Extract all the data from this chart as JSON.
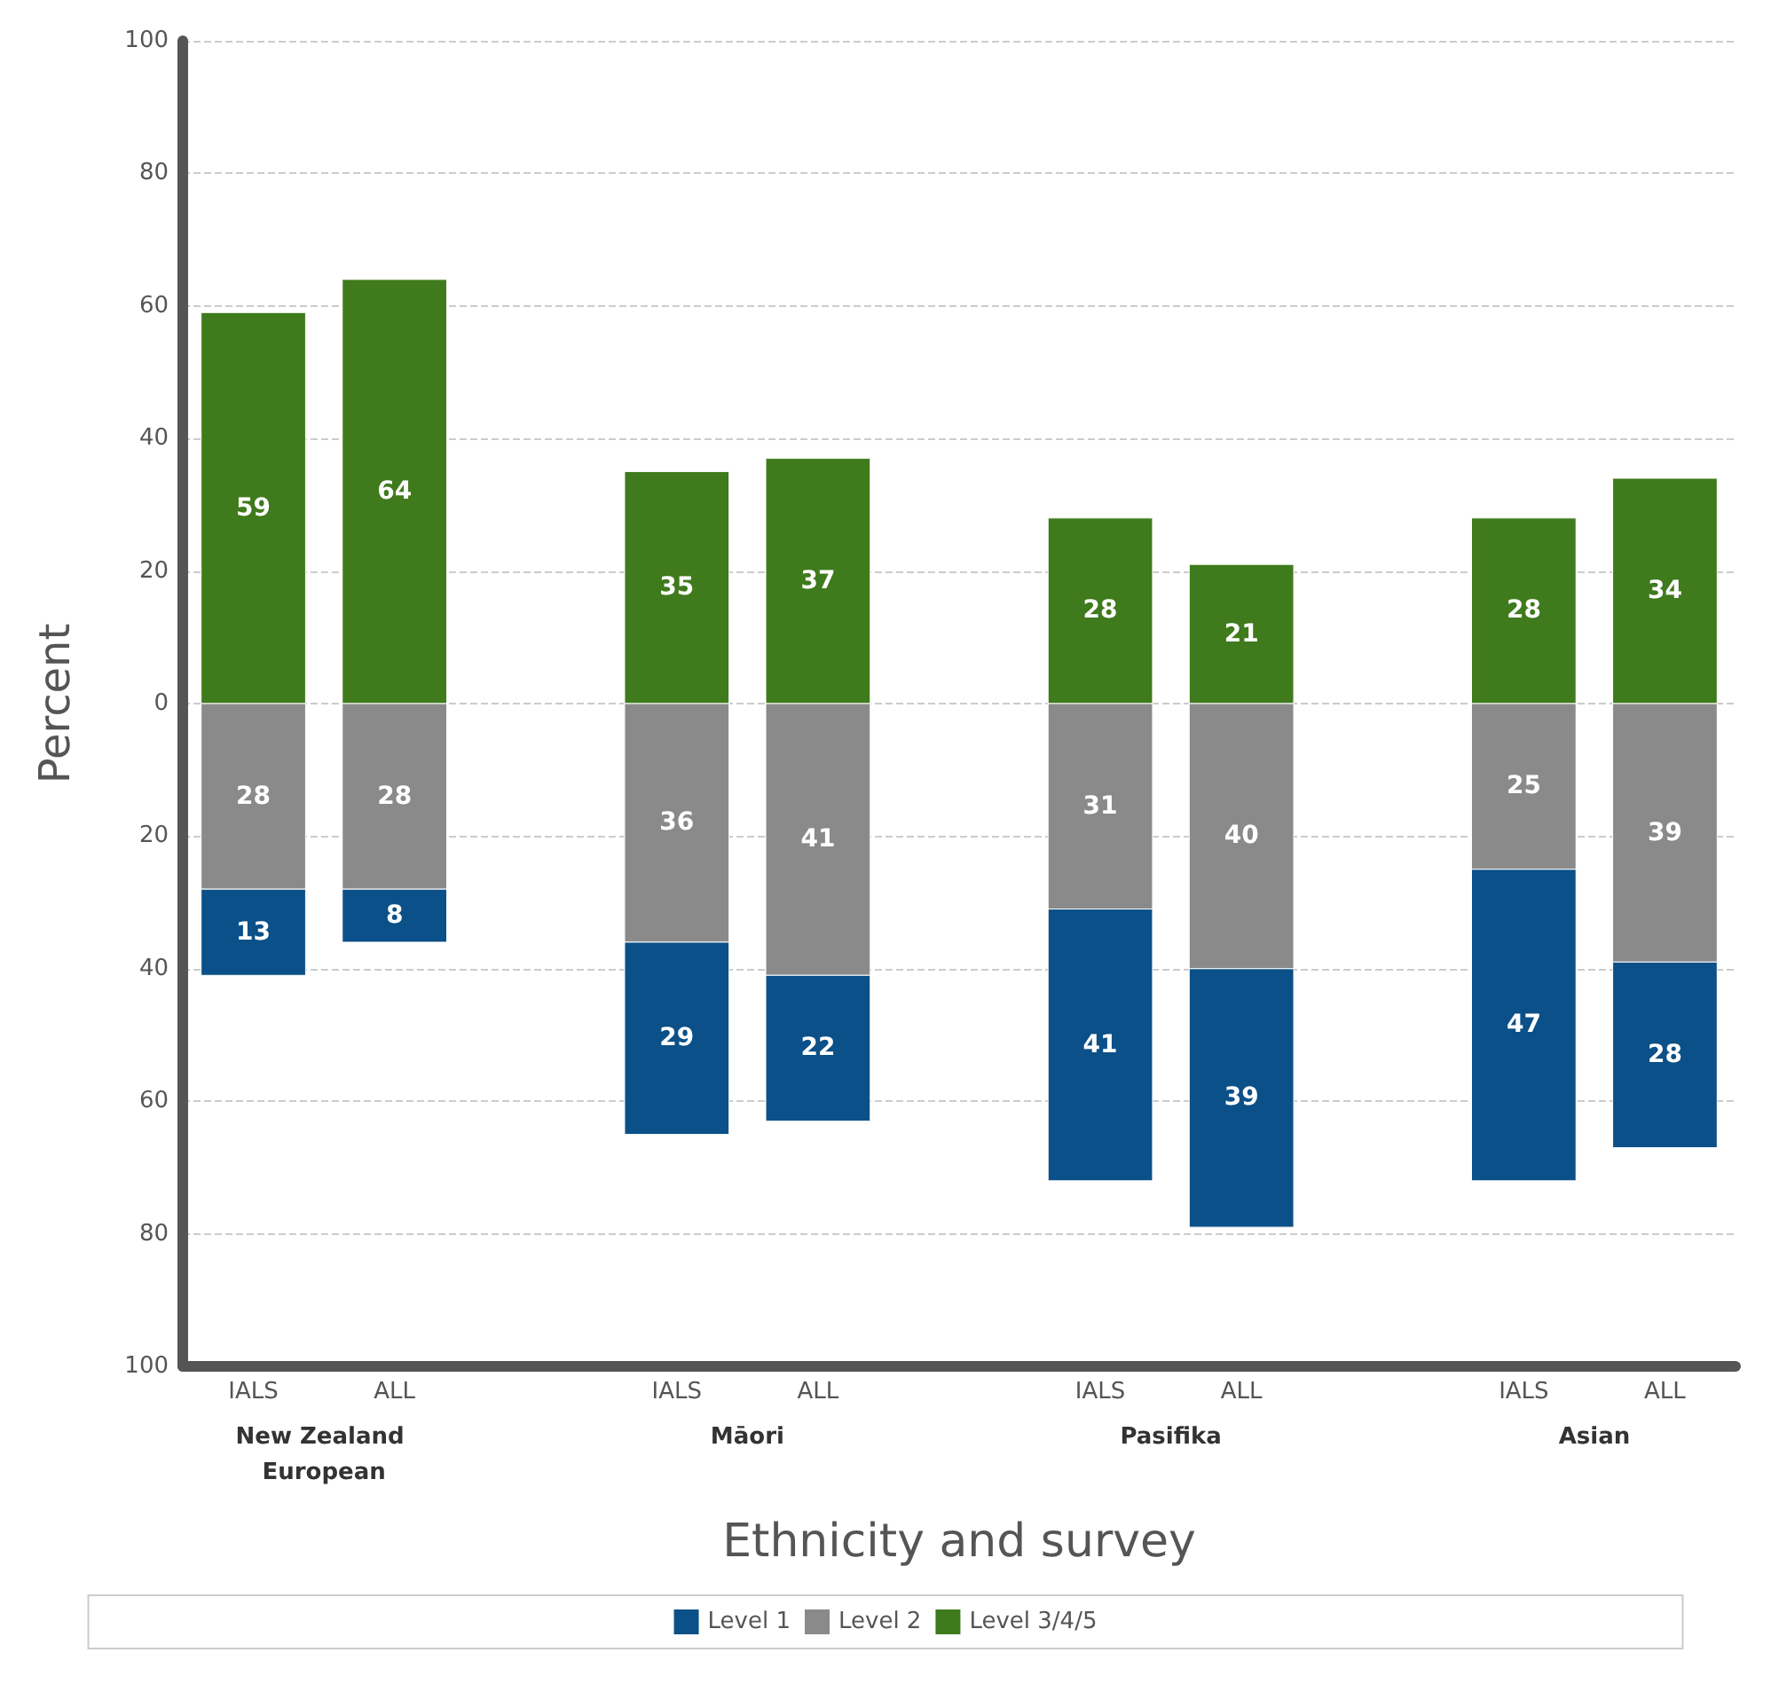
{
  "chart_data": {
    "type": "bar",
    "xlabel": "Ethnicity and survey",
    "ylabel": "Percent",
    "categories": [
      "IALS",
      "ALL",
      null,
      "IALS",
      "ALL",
      null,
      "IALS",
      "ALL",
      null,
      "IALS",
      "ALL"
    ],
    "annotations": [
      "New Zealand European",
      "Māori",
      "Pasifika",
      "Asian"
    ],
    "series": [
      {
        "name": "Level 3/4/5",
        "color": "#3f7a1c",
        "values": [
          59,
          64,
          null,
          35,
          37,
          null,
          28,
          21,
          null,
          28,
          34
        ],
        "base": [
          0,
          0,
          null,
          0,
          0,
          null,
          0,
          0,
          null,
          0,
          0
        ]
      },
      {
        "name": "Level 2",
        "color": "#8a8a8a",
        "values": [
          28,
          28,
          null,
          36,
          41,
          null,
          31,
          40,
          null,
          25,
          39
        ],
        "base": [
          -28,
          -28,
          null,
          -36,
          -41,
          null,
          -31,
          -40,
          null,
          -25,
          -39
        ]
      },
      {
        "name": "Level 1",
        "color": "#0b5088",
        "values": [
          13,
          8,
          null,
          29,
          22,
          null,
          41,
          39,
          null,
          47,
          28
        ],
        "base": [
          -41,
          -36,
          null,
          -65,
          -63,
          null,
          -72,
          -79,
          null,
          -72,
          -67
        ]
      }
    ],
    "data_labels": true,
    "ylim": [
      -100,
      100
    ],
    "yticks": [
      {
        "value": -100,
        "label": "100"
      },
      {
        "value": -80,
        "label": "80"
      },
      {
        "value": -60,
        "label": "60"
      },
      {
        "value": -40,
        "label": "40"
      },
      {
        "value": -20,
        "label": "20"
      },
      0,
      20,
      40,
      60,
      80,
      100
    ],
    "grid": "y",
    "legend": "bottom"
  }
}
